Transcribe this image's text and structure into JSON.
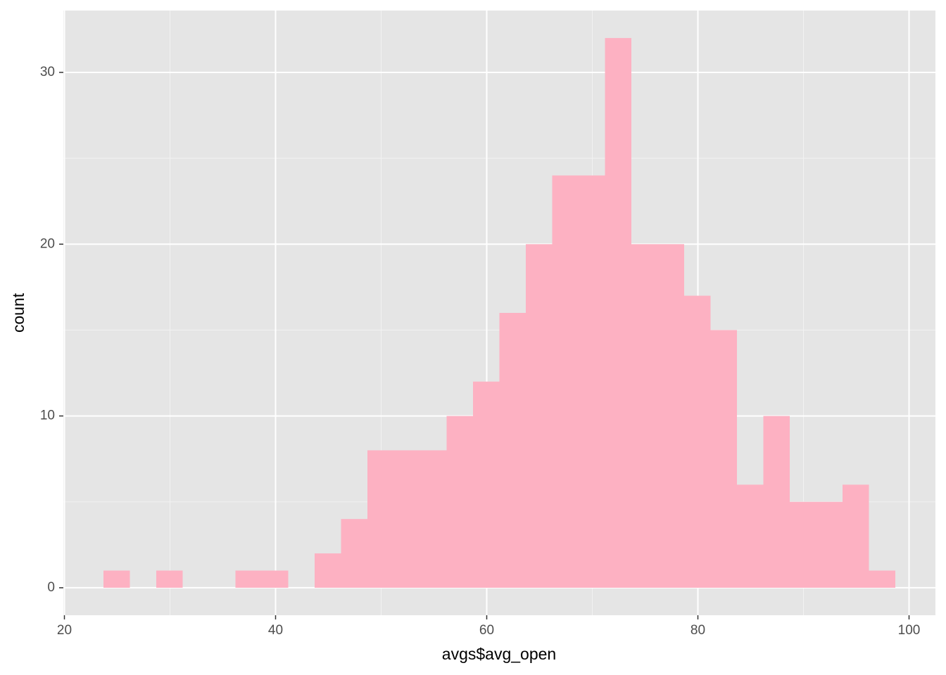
{
  "chart_data": {
    "type": "histogram",
    "x_label": "avgs$avg_open",
    "y_label": "count",
    "bins": [
      23.7,
      26.2,
      28.7,
      31.2,
      33.7,
      36.2,
      38.7,
      41.2,
      43.7,
      46.2,
      48.7,
      51.2,
      53.7,
      56.2,
      58.7,
      61.2,
      63.7,
      66.2,
      68.7,
      71.2,
      73.7,
      76.2,
      78.7,
      81.2,
      83.7,
      86.2,
      88.7,
      91.2,
      93.7,
      96.2,
      98.7
    ],
    "values": [
      1,
      0,
      1,
      0,
      0,
      1,
      1,
      0,
      2,
      4,
      8,
      8,
      8,
      10,
      12,
      16,
      20,
      24,
      24,
      32,
      20,
      20,
      17,
      15,
      6,
      10,
      5,
      5,
      6,
      1
    ],
    "color": "#fdb1c2",
    "xlim": [
      19.9,
      102.5
    ],
    "xticks": [
      20,
      40,
      60,
      80,
      100
    ],
    "ylim": [
      -1.6,
      33.6
    ],
    "yticks": [
      0,
      10,
      20,
      30
    ],
    "x_minor_grid": [
      30,
      50,
      70,
      90
    ],
    "y_minor_grid": [
      5,
      15,
      25
    ],
    "grid": true
  }
}
